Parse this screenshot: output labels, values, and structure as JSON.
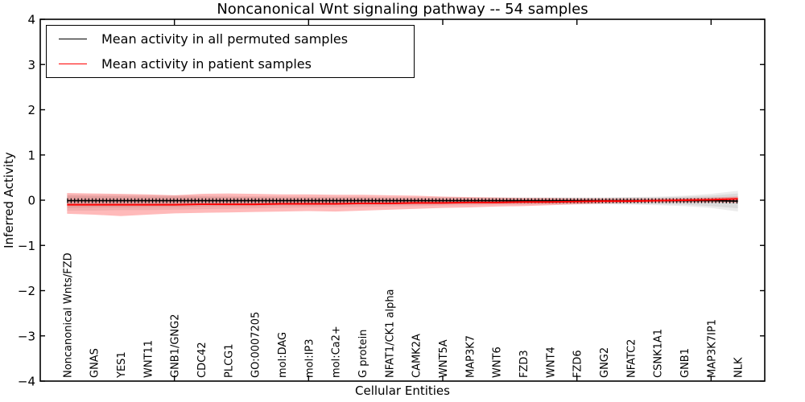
{
  "title": "Noncanonical Wnt signaling pathway -- 54 samples",
  "legend": {
    "items": [
      {
        "label": "Mean activity in all permuted samples",
        "color": "#000000"
      },
      {
        "label": "Mean activity in patient samples",
        "color": "#ff0000"
      }
    ]
  },
  "axes": {
    "x_label": "Cellular Entities",
    "y_label": "Inferred Activity",
    "y_tick_labels": [
      "4",
      "3",
      "2",
      "1",
      "0",
      "−1",
      "−2",
      "−3",
      "−4"
    ],
    "y_tick_values": [
      4,
      3,
      2,
      1,
      0,
      -1,
      -2,
      -3,
      -4
    ],
    "x_tick_values": [
      5,
      10,
      15,
      20,
      25
    ]
  },
  "colors": {
    "permuted_line": "#000000",
    "patient_line": "#ff0000",
    "patient_band": "rgba(255,0,0,0.27)",
    "permuted_band": "rgba(0,0,0,0.075)",
    "axis": "#000000"
  },
  "chart_data": {
    "type": "line",
    "title": "Noncanonical Wnt signaling pathway -- 54 samples",
    "xlabel": "Cellular Entities",
    "ylabel": "Inferred Activity",
    "ylim": [
      -4,
      4
    ],
    "xlim": [
      0,
      27
    ],
    "grid": false,
    "legend_position": "upper left",
    "categories": [
      "Noncanonical Wnts/FZD",
      "GNAS",
      "YES1",
      "WNT11",
      "GNB1/GNG2",
      "CDC42",
      "PLCG1",
      "GO:0007205",
      "mol:DAG",
      "mol:IP3",
      "mol:Ca2+",
      "G protein",
      "NFAT1/CK1 alpha",
      "CAMK2A",
      "WNT5A",
      "MAP3K7",
      "WNT6",
      "FZD3",
      "WNT4",
      "FZD6",
      "GNG2",
      "NFATC2",
      "CSNK1A1",
      "GNB1",
      "MAP3K7IP1",
      "NLK"
    ],
    "series": [
      {
        "name": "Mean activity in all permuted samples",
        "color": "#000000",
        "marker": "tick",
        "values": [
          -0.01,
          -0.01,
          -0.01,
          -0.01,
          -0.01,
          -0.01,
          -0.01,
          -0.01,
          -0.01,
          -0.01,
          -0.01,
          -0.01,
          -0.01,
          -0.01,
          -0.01,
          -0.01,
          -0.01,
          -0.01,
          -0.01,
          -0.01,
          -0.01,
          -0.01,
          -0.01,
          -0.01,
          -0.01,
          -0.02
        ]
      },
      {
        "name": "Mean activity in patient samples",
        "color": "#ff0000",
        "marker": "none",
        "values": [
          -0.1,
          -0.1,
          -0.1,
          -0.1,
          -0.1,
          -0.09,
          -0.09,
          -0.09,
          -0.08,
          -0.08,
          -0.08,
          -0.07,
          -0.07,
          -0.06,
          -0.06,
          -0.05,
          -0.05,
          -0.04,
          -0.04,
          -0.03,
          -0.02,
          -0.02,
          -0.01,
          0.0,
          0.01,
          0.03
        ]
      }
    ],
    "bands": [
      {
        "name": "permuted-outer-range",
        "color": "rgba(0,0,0,0.075)",
        "upper": [
          0.13,
          0.12,
          0.12,
          0.11,
          0.11,
          0.1,
          0.1,
          0.09,
          0.09,
          0.08,
          0.08,
          0.08,
          0.07,
          0.07,
          0.07,
          0.06,
          0.06,
          0.06,
          0.06,
          0.06,
          0.06,
          0.07,
          0.08,
          0.1,
          0.14,
          0.21
        ],
        "lower": [
          -0.23,
          -0.23,
          -0.22,
          -0.22,
          -0.21,
          -0.2,
          -0.19,
          -0.18,
          -0.17,
          -0.16,
          -0.16,
          -0.15,
          -0.14,
          -0.13,
          -0.12,
          -0.11,
          -0.1,
          -0.1,
          -0.09,
          -0.09,
          -0.09,
          -0.1,
          -0.11,
          -0.13,
          -0.17,
          -0.25
        ]
      },
      {
        "name": "permuted-inner-range",
        "color": "rgba(0,0,0,0.075)",
        "upper": [
          0.1,
          0.09,
          0.09,
          0.08,
          0.08,
          0.08,
          0.07,
          0.07,
          0.06,
          0.06,
          0.06,
          0.06,
          0.05,
          0.05,
          0.05,
          0.05,
          0.05,
          0.05,
          0.05,
          0.05,
          0.05,
          0.06,
          0.06,
          0.08,
          0.1,
          0.15
        ],
        "lower": [
          -0.17,
          -0.16,
          -0.16,
          -0.15,
          -0.15,
          -0.14,
          -0.13,
          -0.13,
          -0.12,
          -0.12,
          -0.11,
          -0.11,
          -0.1,
          -0.1,
          -0.09,
          -0.09,
          -0.08,
          -0.08,
          -0.08,
          -0.08,
          -0.08,
          -0.08,
          -0.09,
          -0.1,
          -0.13,
          -0.18
        ]
      },
      {
        "name": "patient-range",
        "color": "rgba(255,0,0,0.27)",
        "upper": [
          0.16,
          0.15,
          0.14,
          0.13,
          0.11,
          0.14,
          0.15,
          0.14,
          0.13,
          0.13,
          0.12,
          0.12,
          0.11,
          0.1,
          0.08,
          0.07,
          0.06,
          0.05,
          0.05,
          0.04,
          0.04,
          0.04,
          0.04,
          0.05,
          0.06,
          0.08
        ],
        "lower": [
          -0.3,
          -0.32,
          -0.35,
          -0.32,
          -0.29,
          -0.28,
          -0.27,
          -0.26,
          -0.25,
          -0.24,
          -0.25,
          -0.23,
          -0.21,
          -0.19,
          -0.17,
          -0.16,
          -0.14,
          -0.13,
          -0.11,
          -0.09,
          -0.07,
          -0.06,
          -0.05,
          -0.05,
          -0.05,
          -0.06
        ]
      }
    ]
  }
}
